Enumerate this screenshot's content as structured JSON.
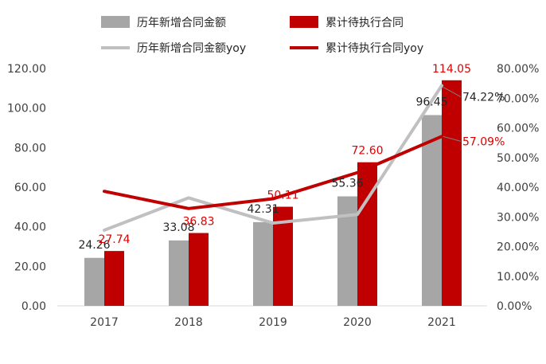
{
  "chart_data": {
    "type": "bar+line",
    "categories": [
      "2017",
      "2018",
      "2019",
      "2020",
      "2021"
    ],
    "bar_series": [
      {
        "name": "历年新增合同金额",
        "color": "#a6a6a6",
        "values": [
          24.26,
          33.08,
          42.31,
          55.36,
          96.45
        ],
        "labels": [
          "24.26",
          "33.08",
          "42.31",
          "55.36",
          "96.45"
        ],
        "label_color": "#262626"
      },
      {
        "name": "累计待执行合同",
        "color": "#c00000",
        "values": [
          27.74,
          36.83,
          50.11,
          72.6,
          114.05
        ],
        "labels": [
          "27.74",
          "36.83",
          "50.11",
          "72.60",
          "114.05"
        ],
        "label_color": "#e00000"
      }
    ],
    "line_series": [
      {
        "name": "历年新增合同金额yoy",
        "color": "#c0c0c0",
        "values": [
          25.5,
          36.4,
          27.9,
          30.8,
          74.22
        ],
        "end_label": "74.22%",
        "label_color": "#262626"
      },
      {
        "name": "累计待执行合同yoy",
        "color": "#c00000",
        "values": [
          38.6,
          32.8,
          36.1,
          44.9,
          57.09
        ],
        "end_label": "57.09%",
        "label_color": "#e00000"
      }
    ],
    "y_left": {
      "min": 0,
      "max": 120,
      "ticks": [
        "0.00",
        "20.00",
        "40.00",
        "60.00",
        "80.00",
        "100.00",
        "120.00"
      ]
    },
    "y_right": {
      "min": 0,
      "max": 80,
      "ticks": [
        "0.00%",
        "10.00%",
        "20.00%",
        "30.00%",
        "40.00%",
        "50.00%",
        "60.00%",
        "70.00%",
        "80.00%"
      ]
    },
    "legend_position": "top",
    "grid": false
  }
}
